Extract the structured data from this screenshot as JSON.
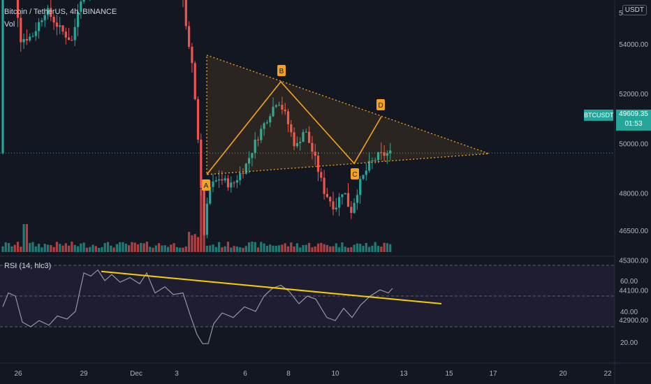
{
  "header": {
    "symbol_line": "Bitcoin / TetherUS, 4h, BINANCE",
    "volume_label": "Vol",
    "currency_button": "USDT",
    "rsi_label": "RSI (14, hlc3)"
  },
  "badges": {
    "symbol": "BTCUSDT",
    "price": "49609.35",
    "countdown": "01:53"
  },
  "chart_data": [
    {
      "type": "candlestick",
      "title": "Bitcoin / TetherUS, 4h, BINANCE",
      "price_axis_ticks": [
        54000,
        52000,
        50000,
        48000,
        46500,
        45300,
        44100,
        42900
      ],
      "price_tick_labels": [
        "54000.00",
        "52000.00",
        "50000.00",
        "48000.00",
        "46500.00",
        "45300.00",
        "44100.00",
        "42900.00"
      ],
      "top_partial_label": "5",
      "x_tick_labels": [
        "26",
        "29",
        "Dec",
        "3",
        "6",
        "8",
        "10",
        "13",
        "15",
        "17",
        "20",
        "22"
      ],
      "last_price": 49609.35,
      "colors": {
        "up": "#26a69a",
        "down": "#ef5350",
        "pattern": "#f7a21b"
      },
      "pattern": {
        "points": [
          {
            "label": "A",
            "date": "Dec 4",
            "price": 46300
          },
          {
            "label": "B",
            "date": "Dec 7",
            "price": 51800
          },
          {
            "label": "C",
            "date": "Dec 10",
            "price": 47000
          },
          {
            "label": "D",
            "date": "Dec 11",
            "price": 49800
          }
        ],
        "triangle_apex_date": "Dec 16"
      }
    },
    {
      "type": "line",
      "title": "RSI (14, hlc3)",
      "y_tick_labels": [
        "60.00",
        "40.00",
        "20.00"
      ],
      "y_ticks": [
        60,
        40,
        20
      ],
      "bands": [
        70,
        50,
        30
      ],
      "series_color": "#9598a1",
      "trendline_color": "#f5d000"
    }
  ]
}
